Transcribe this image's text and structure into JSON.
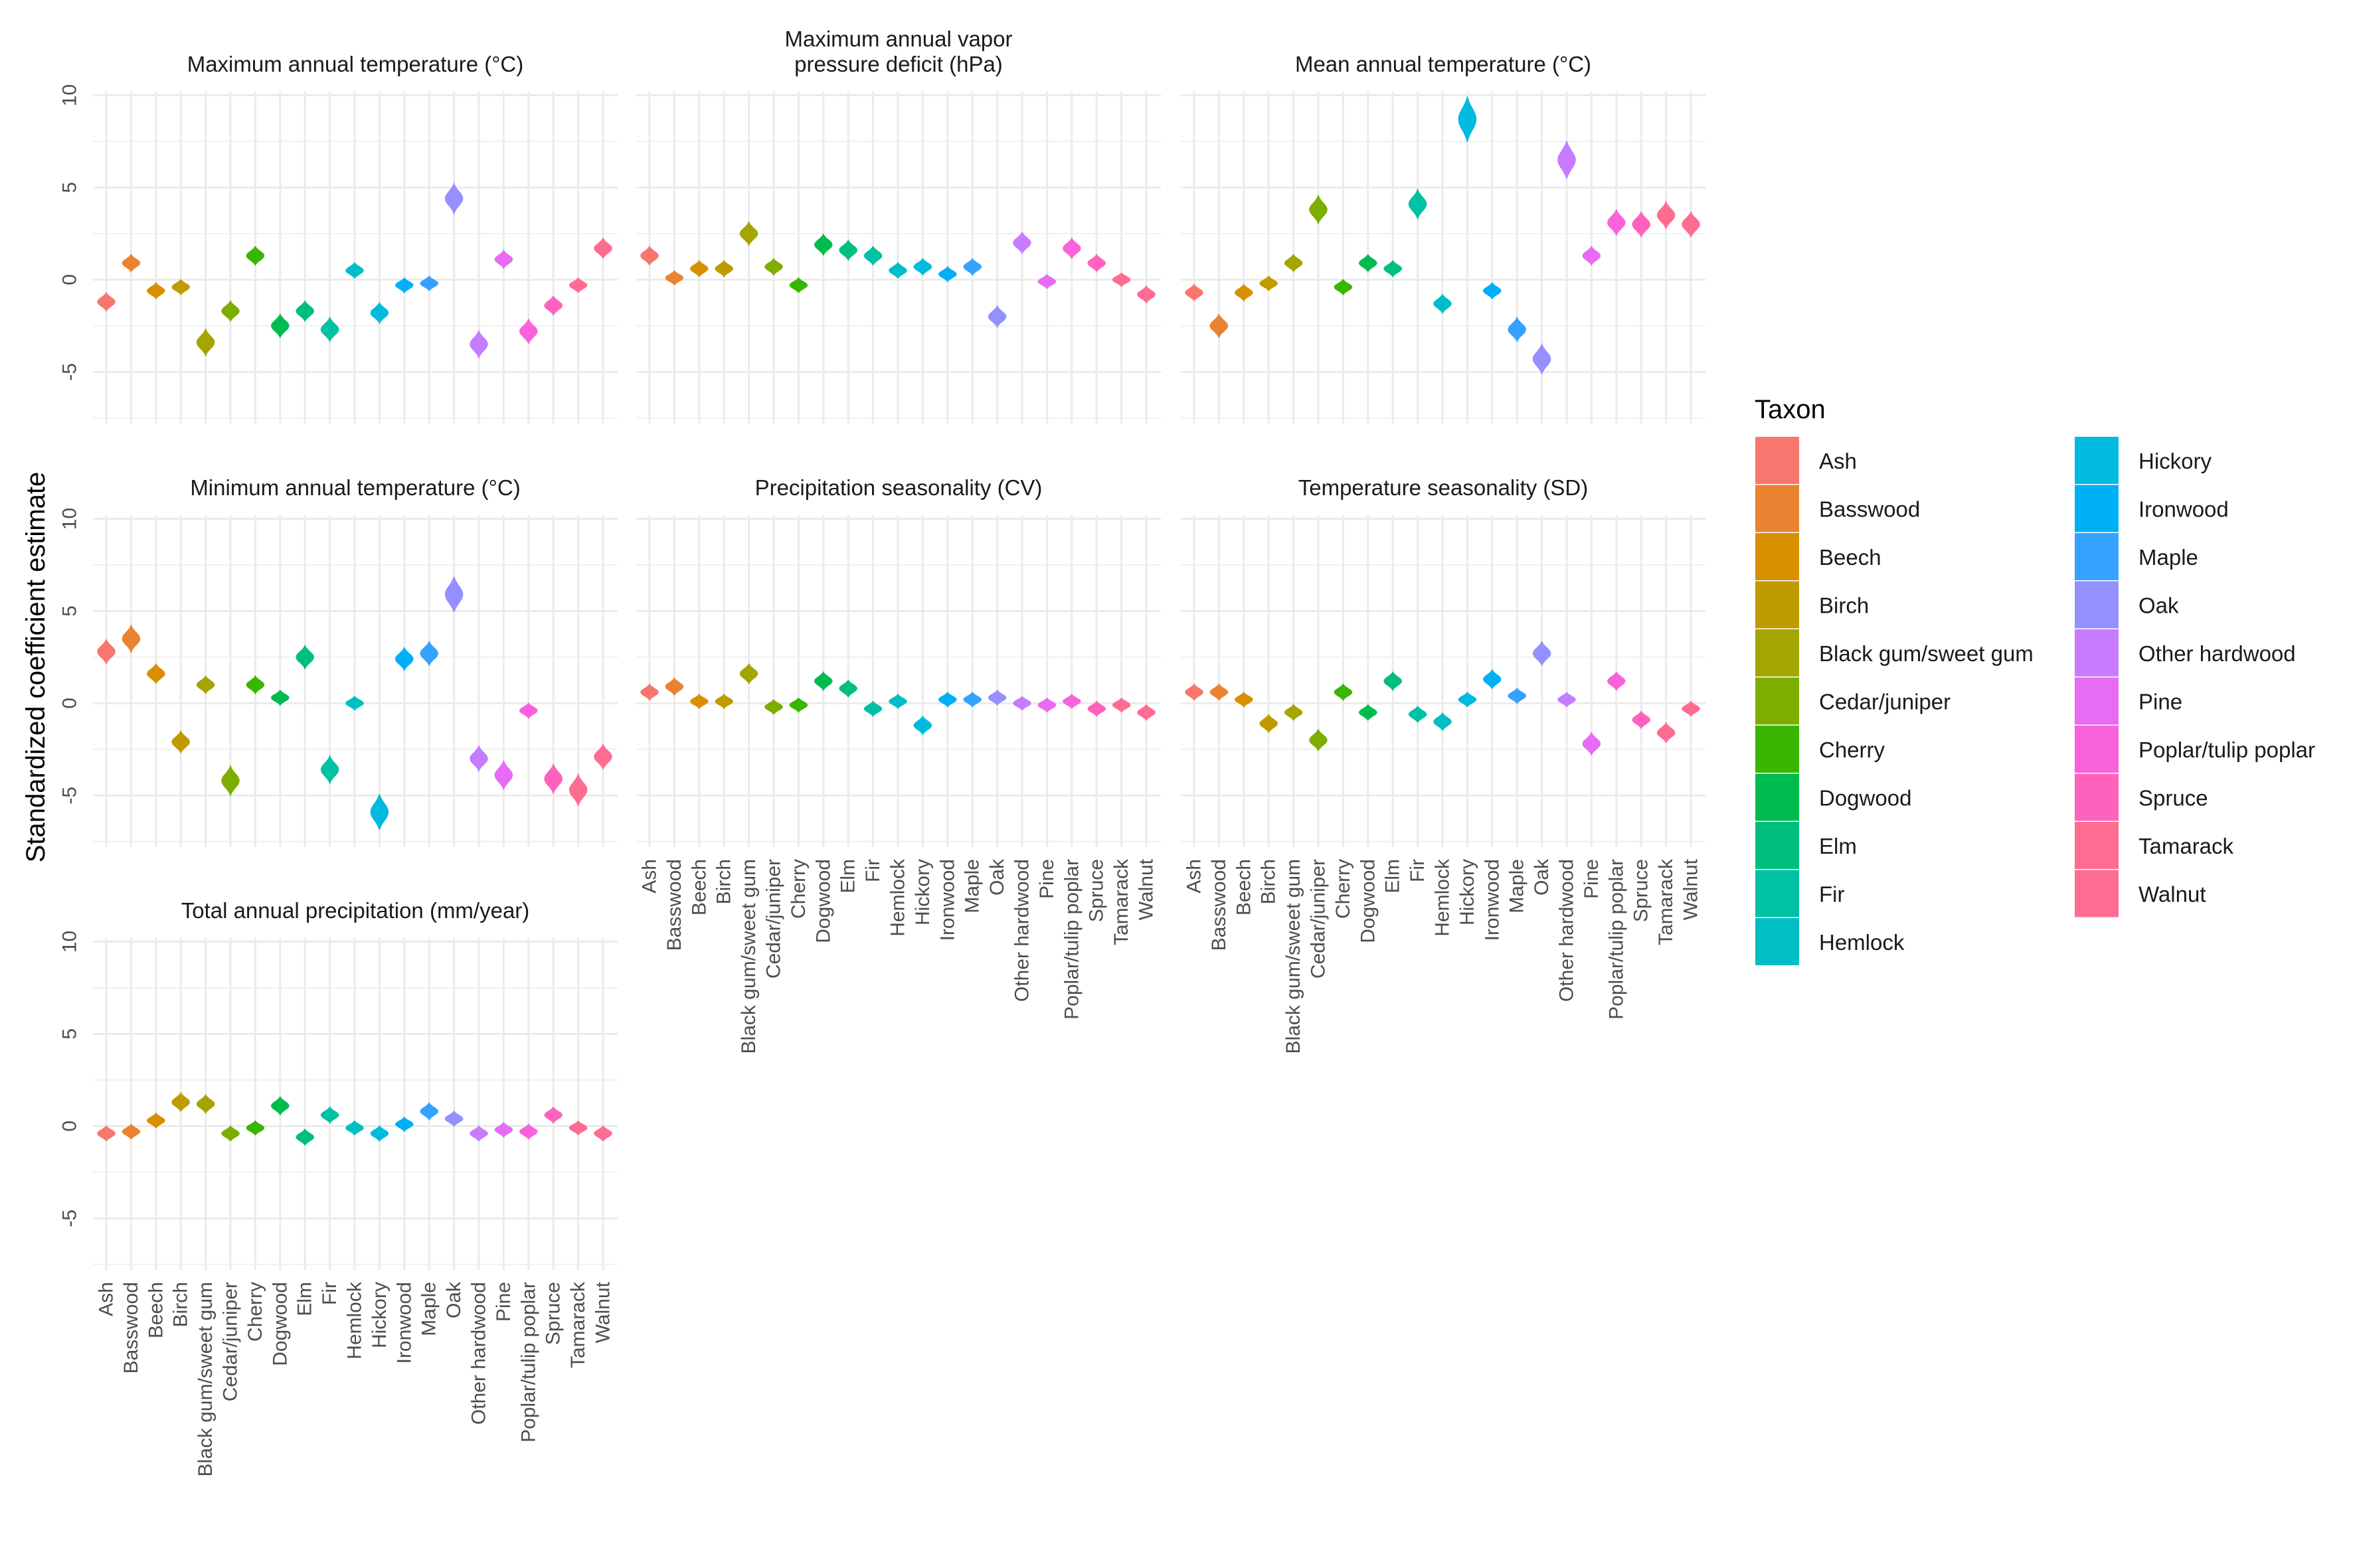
{
  "chart_data": {
    "type": "violin",
    "ylabel": "Standardized coefficient estimate",
    "ylim": [
      -7.8,
      10.2
    ],
    "yticks": [
      -5,
      0,
      5,
      10
    ],
    "ytick_labels": [
      "-5",
      "0",
      "5",
      "10"
    ],
    "categories": [
      "Ash",
      "Basswood",
      "Beech",
      "Birch",
      "Black gum/sweet gum",
      "Cedar/juniper",
      "Cherry",
      "Dogwood",
      "Elm",
      "Fir",
      "Hemlock",
      "Hickory",
      "Ironwood",
      "Maple",
      "Oak",
      "Other hardwood",
      "Pine",
      "Poplar/tulip poplar",
      "Spruce",
      "Tamarack",
      "Walnut"
    ],
    "colors": [
      "#F8766D",
      "#EA8331",
      "#D89000",
      "#C09B00",
      "#A3A500",
      "#7CAE00",
      "#39B600",
      "#00BB4E",
      "#00BF7D",
      "#00C1A3",
      "#00BFC4",
      "#00BAE0",
      "#00B0F6",
      "#35A2FF",
      "#9590FF",
      "#C77CFF",
      "#E76BF3",
      "#FA62DB",
      "#FF62BC",
      "#FF6C91",
      "#FF6C91"
    ],
    "legend": {
      "title": "Taxon",
      "position": "right",
      "items": [
        "Ash",
        "Basswood",
        "Beech",
        "Birch",
        "Black gum/sweet gum",
        "Cedar/juniper",
        "Cherry",
        "Dogwood",
        "Elm",
        "Fir",
        "Hemlock",
        "Hickory",
        "Ironwood",
        "Maple",
        "Oak",
        "Other hardwood",
        "Pine",
        "Poplar/tulip poplar",
        "Spruce",
        "Tamarack",
        "Walnut"
      ]
    },
    "panels": [
      {
        "title": [
          "Maximum annual temperature (°C)"
        ],
        "values": [
          -1.2,
          0.9,
          -0.6,
          -0.4,
          -3.4,
          -1.7,
          1.3,
          -2.5,
          -1.7,
          -2.7,
          0.5,
          -1.8,
          -0.3,
          -0.2,
          4.4,
          -3.5,
          1.1,
          -2.8,
          -1.4,
          -0.3,
          1.7
        ]
      },
      {
        "title": [
          "Maximum annual vapor",
          "pressure deficit (hPa)"
        ],
        "values": [
          1.3,
          0.1,
          0.6,
          0.6,
          2.5,
          0.7,
          -0.3,
          1.9,
          1.6,
          1.3,
          0.5,
          0.7,
          0.3,
          0.7,
          -2.0,
          2.0,
          -0.1,
          1.7,
          0.9,
          0.0,
          -0.8
        ]
      },
      {
        "title": [
          "Mean annual temperature (°C)"
        ],
        "values": [
          -0.7,
          -2.5,
          -0.7,
          -0.2,
          0.9,
          3.8,
          -0.4,
          0.9,
          0.6,
          4.1,
          -1.3,
          8.7,
          -0.6,
          -2.7,
          -4.3,
          6.5,
          1.3,
          3.1,
          3.0,
          3.5,
          3.0
        ]
      },
      {
        "title": [
          "Minimum annual temperature (°C)"
        ],
        "values": [
          2.8,
          3.5,
          1.6,
          -2.1,
          1.0,
          -4.2,
          1.0,
          0.3,
          2.5,
          -3.6,
          0.0,
          -5.9,
          2.4,
          2.7,
          5.9,
          -3.0,
          -3.9,
          -0.4,
          -4.1,
          -4.7,
          -2.9
        ]
      },
      {
        "title": [
          "Precipitation seasonality (CV)"
        ],
        "values": [
          0.6,
          0.9,
          0.1,
          0.1,
          1.6,
          -0.2,
          -0.1,
          1.2,
          0.8,
          -0.3,
          0.1,
          -1.2,
          0.2,
          0.2,
          0.3,
          0.0,
          -0.1,
          0.1,
          -0.3,
          -0.1,
          -0.5
        ]
      },
      {
        "title": [
          "Temperature seasonality (SD)"
        ],
        "values": [
          0.6,
          0.6,
          0.2,
          -1.1,
          -0.5,
          -2.0,
          0.6,
          -0.5,
          1.2,
          -0.6,
          -1.0,
          0.2,
          1.3,
          0.4,
          2.7,
          0.2,
          -2.2,
          1.2,
          -0.9,
          -1.6,
          -0.3
        ]
      },
      {
        "title": [
          "Total annual precipitation (mm/year)"
        ],
        "values": [
          -0.4,
          -0.3,
          0.3,
          1.3,
          1.2,
          -0.4,
          -0.1,
          1.1,
          -0.6,
          0.6,
          -0.1,
          -0.4,
          0.1,
          0.8,
          0.4,
          -0.4,
          -0.2,
          -0.3,
          0.6,
          -0.1,
          -0.4
        ]
      }
    ]
  }
}
